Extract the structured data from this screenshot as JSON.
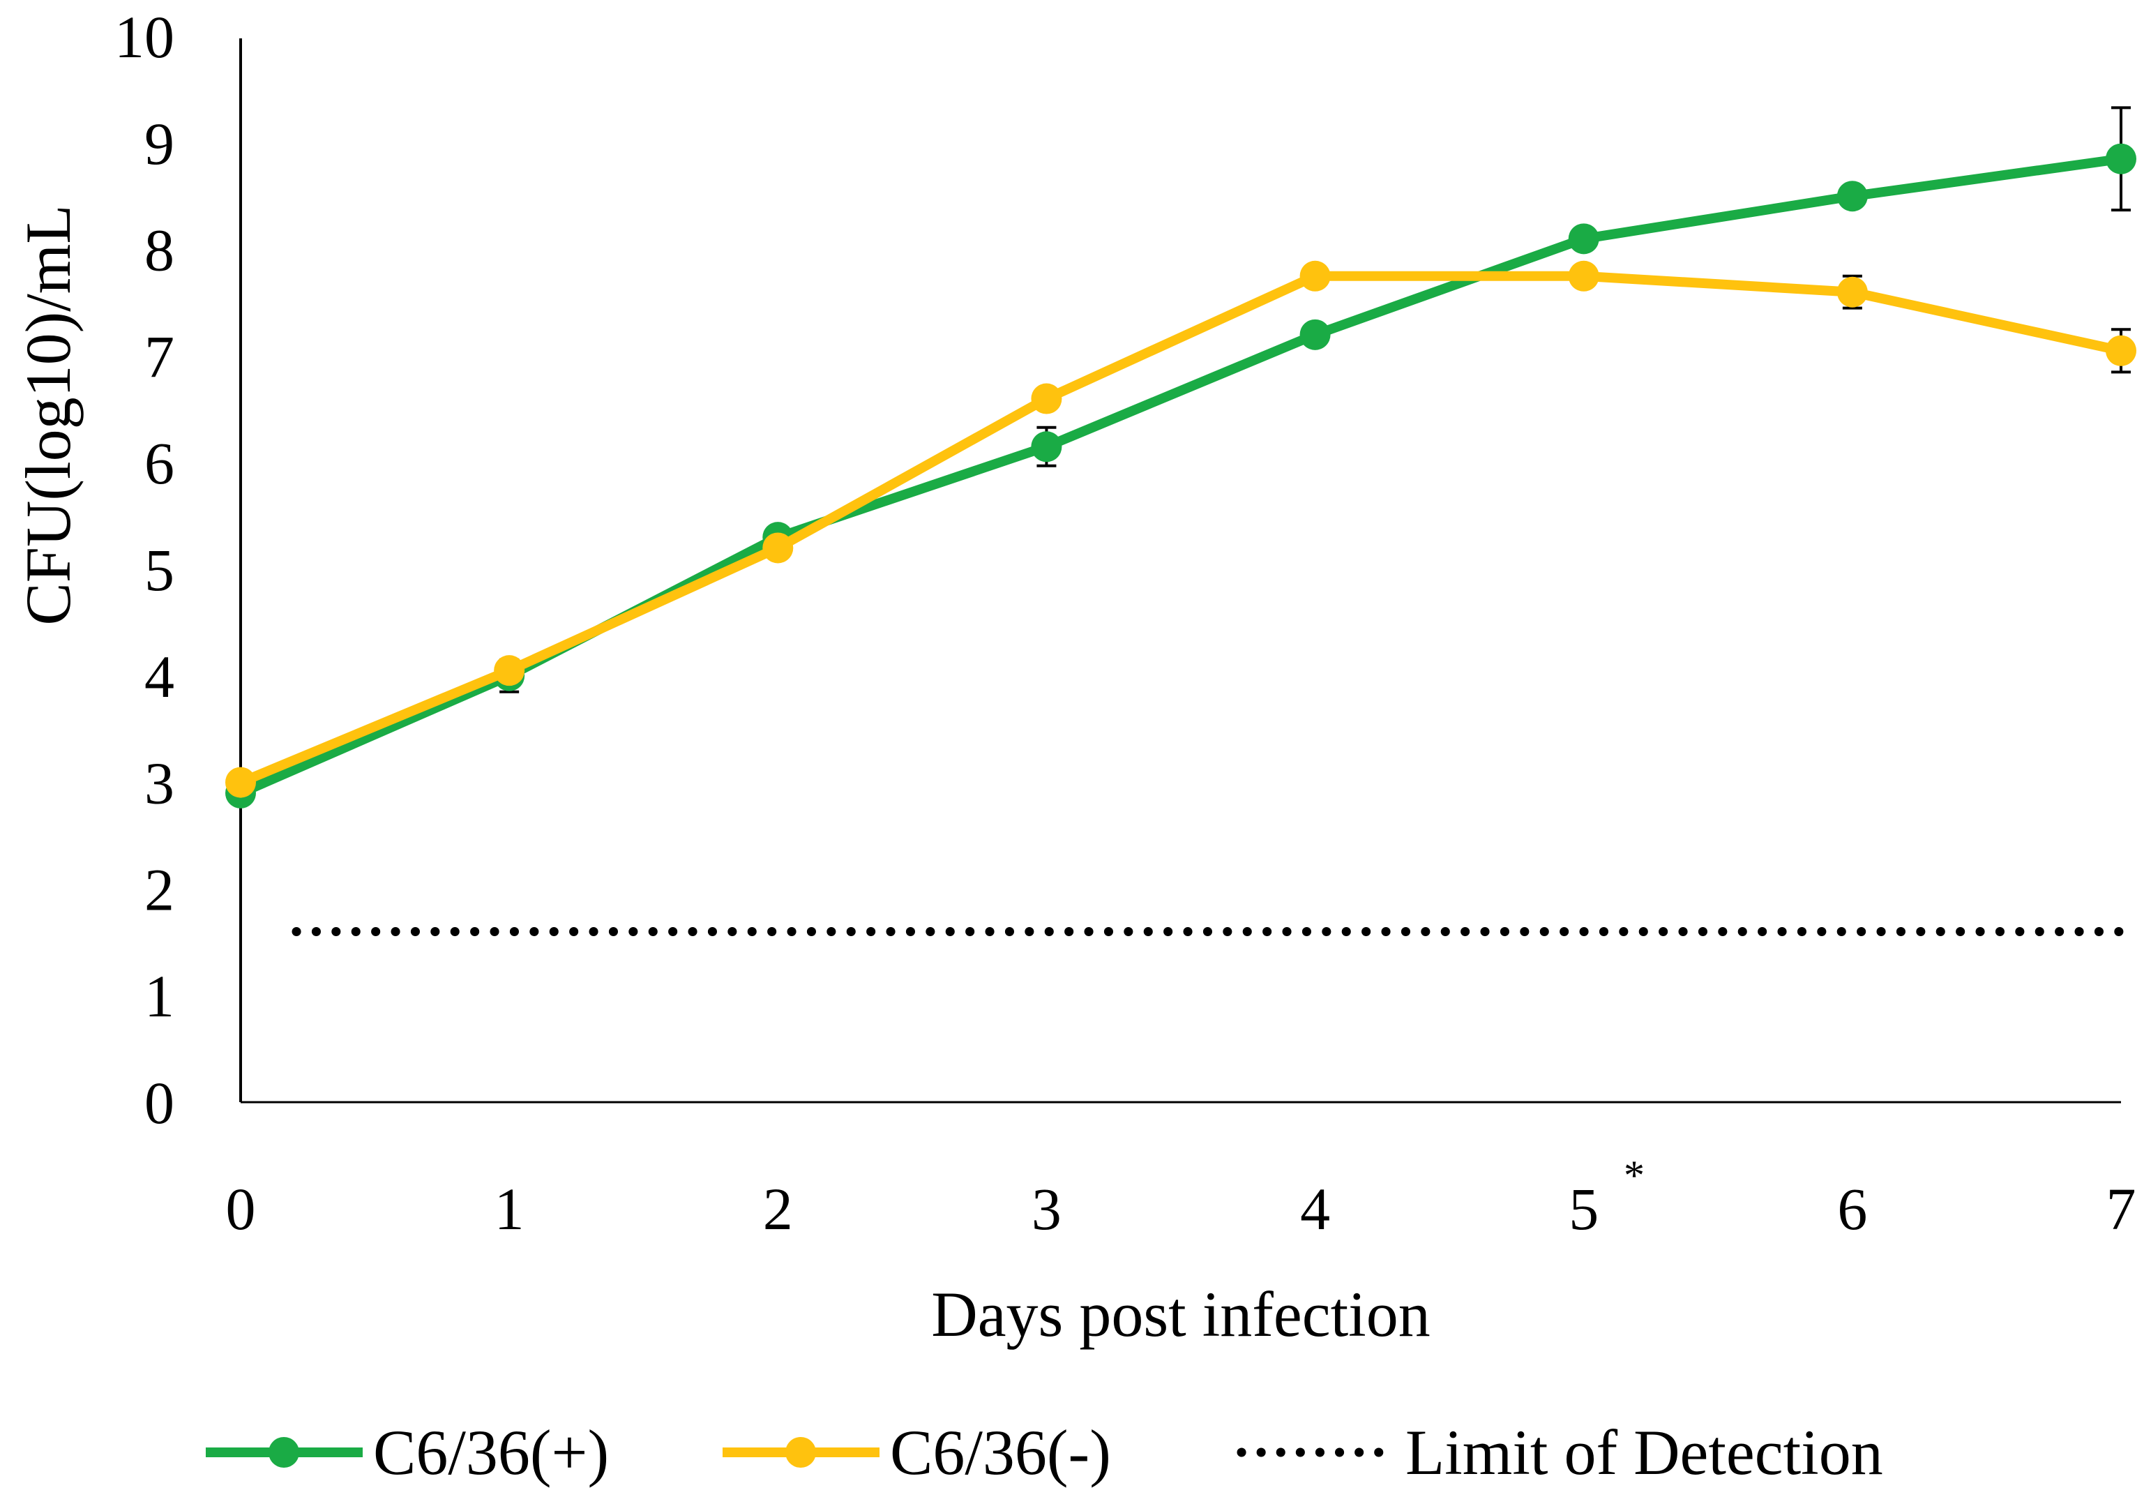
{
  "chart_data": {
    "type": "line",
    "title": "",
    "xlabel": "Days post infection",
    "ylabel": "CFU(log10)/mL",
    "x": [
      0,
      1,
      2,
      3,
      4,
      5,
      6,
      7
    ],
    "x_tick_labels": [
      "0",
      "1",
      "2",
      "3",
      "4",
      "5",
      "6",
      "7"
    ],
    "y_ticks": [
      0,
      1,
      2,
      3,
      4,
      5,
      6,
      7,
      8,
      9,
      10
    ],
    "ylim": [
      0,
      10
    ],
    "xlim": [
      0,
      7
    ],
    "grid": false,
    "significance_marker": {
      "x": 5,
      "label": "*"
    },
    "series": [
      {
        "name": "C6/36(+)",
        "color": "#1aab45",
        "values": [
          2.9,
          4.0,
          5.3,
          6.15,
          7.2,
          8.1,
          8.5,
          8.85
        ],
        "error": [
          0.05,
          0.15,
          0.05,
          0.18,
          0.05,
          0.05,
          0.08,
          0.48
        ]
      },
      {
        "name": "C6/36(-)",
        "color": "#ffc20e",
        "values": [
          3.0,
          4.05,
          5.2,
          6.6,
          7.75,
          7.75,
          7.6,
          7.05
        ],
        "error": [
          0.05,
          0.1,
          0.05,
          0.05,
          0.05,
          0.08,
          0.15,
          0.2
        ]
      }
    ],
    "reference_line": {
      "name": "Limit of Detection",
      "value": 1.6,
      "style": "dotted",
      "color": "#000000"
    },
    "legend_position": "bottom"
  }
}
